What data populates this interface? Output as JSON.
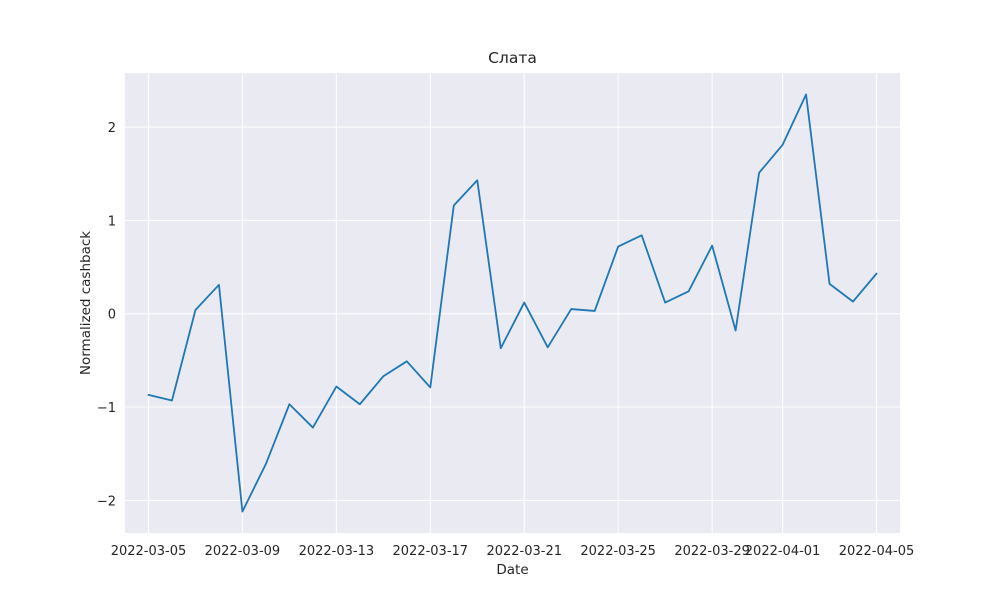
{
  "chart_data": {
    "type": "line",
    "title": "Слата",
    "xlabel": "Date",
    "ylabel": "Normalized cashback",
    "x": [
      "2022-03-05",
      "2022-03-06",
      "2022-03-07",
      "2022-03-08",
      "2022-03-09",
      "2022-03-10",
      "2022-03-11",
      "2022-03-12",
      "2022-03-13",
      "2022-03-14",
      "2022-03-15",
      "2022-03-16",
      "2022-03-17",
      "2022-03-18",
      "2022-03-19",
      "2022-03-20",
      "2022-03-21",
      "2022-03-22",
      "2022-03-23",
      "2022-03-24",
      "2022-03-25",
      "2022-03-26",
      "2022-03-27",
      "2022-03-28",
      "2022-03-29",
      "2022-03-30",
      "2022-03-31",
      "2022-04-01",
      "2022-04-02",
      "2022-04-03",
      "2022-04-04",
      "2022-04-05"
    ],
    "series": [
      {
        "values": [
          -0.87,
          -0.93,
          0.04,
          0.31,
          -2.12,
          -1.61,
          -0.97,
          -1.22,
          -0.78,
          -0.97,
          -0.67,
          -0.51,
          -0.79,
          1.16,
          1.43,
          -0.37,
          0.12,
          -0.36,
          0.05,
          0.03,
          0.72,
          0.84,
          0.12,
          0.24,
          0.73,
          -0.18,
          1.51,
          1.81,
          2.35,
          0.32,
          0.13,
          0.43
        ],
        "color": "#1f77b4"
      }
    ],
    "xticks": [
      "2022-03-05",
      "2022-03-09",
      "2022-03-13",
      "2022-03-17",
      "2022-03-21",
      "2022-03-25",
      "2022-03-29",
      "2022-04-01",
      "2022-04-05"
    ],
    "yticks": [
      -2,
      -1,
      0,
      1,
      2
    ],
    "ytick_labels": [
      "−2",
      "−1",
      "0",
      "1",
      "2"
    ],
    "xlim": [
      "2022-03-04",
      "2022-04-06"
    ],
    "ylim": [
      -2.35,
      2.58
    ],
    "grid": true,
    "background_color": "#eaeaf2",
    "grid_color": "#ffffff"
  }
}
